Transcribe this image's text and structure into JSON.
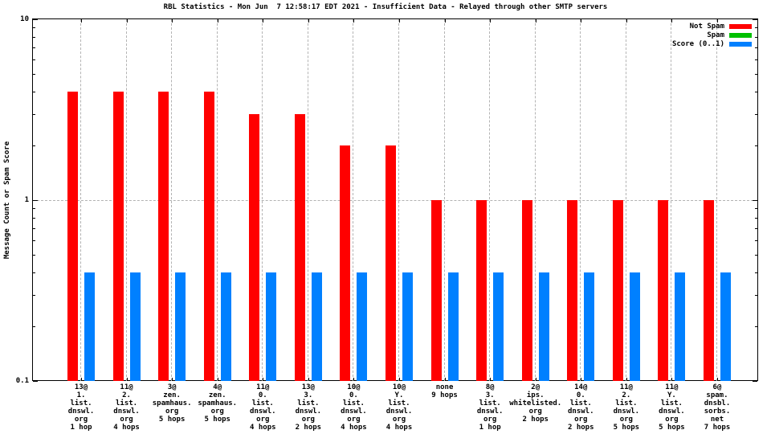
{
  "title": "RBL Statistics - Mon Jun  7 12:58:17 EDT 2021 - Insufficient Data - Relayed through other SMTP servers",
  "ylabel": "Message Count or Spam Score",
  "colors": {
    "not_spam": "#ff0000",
    "spam": "#00c000",
    "score": "#0080ff",
    "grid": "#b3b3b3",
    "axis": "#000000"
  },
  "legend": {
    "position": "top-right",
    "entries": [
      {
        "label": "Not Spam",
        "color": "#ff0000"
      },
      {
        "label": "Spam",
        "color": "#00c000"
      },
      {
        "label": "Score (0..1)",
        "color": "#0080ff"
      }
    ]
  },
  "chart_data": {
    "type": "bar",
    "title": "RBL Statistics - Mon Jun  7 12:58:17 EDT 2021 - Insufficient Data - Relayed through other SMTP servers",
    "xlabel": "",
    "ylabel": "Message Count or Spam Score",
    "yscale": "log",
    "ylim": [
      0.1,
      10
    ],
    "grid": true,
    "yticks": [
      {
        "label": "10",
        "value": 10
      },
      {
        "label": "1",
        "value": 1
      },
      {
        "label": "0.1",
        "value": 0.1
      }
    ],
    "categories": [
      "13@\n1.\nlist.\ndnswl.\norg\n1 hop",
      "11@\n2.\nlist.\ndnswl.\norg\n4 hops",
      "3@\nzen.\nspamhaus.\norg\n5 hops",
      "4@\nzen.\nspamhaus.\norg\n5 hops",
      "11@\n0.\nlist.\ndnswl.\norg\n4 hops",
      "13@\n3.\nlist.\ndnswl.\norg\n2 hops",
      "10@\n0.\nlist.\ndnswl.\norg\n4 hops",
      "10@\nY.\nlist.\ndnswl.\norg\n4 hops",
      "none\n9 hops",
      "8@\n3.\nlist.\ndnswl.\norg\n1 hop",
      "2@\nips.\nwhitelisted.\norg\n2 hops",
      "14@\n0.\nlist.\ndnswl.\norg\n2 hops",
      "11@\n2.\nlist.\ndnswl.\norg\n5 hops",
      "11@\nY.\nlist.\ndnswl.\norg\n5 hops",
      "6@\nspam.\ndnsbl.\nsorbs.\nnet\n7 hops"
    ],
    "series": [
      {
        "name": "Not Spam",
        "color": "#ff0000",
        "bar_offset": -17,
        "values": [
          4,
          4,
          4,
          4,
          3,
          3,
          2,
          2,
          1,
          1,
          1,
          1,
          1,
          1,
          1
        ]
      },
      {
        "name": "Spam",
        "color": "#00c000",
        "bar_offset": -6,
        "values": [
          0,
          0,
          0,
          0,
          0,
          0,
          0,
          0,
          0,
          0,
          0,
          0,
          0,
          0,
          0
        ]
      },
      {
        "name": "Score (0..1)",
        "color": "#0080ff",
        "bar_offset": 4,
        "values": [
          0.4,
          0.4,
          0.4,
          0.4,
          0.4,
          0.4,
          0.4,
          0.4,
          0.4,
          0.4,
          0.4,
          0.4,
          0.4,
          0.4,
          0.4
        ]
      }
    ]
  }
}
